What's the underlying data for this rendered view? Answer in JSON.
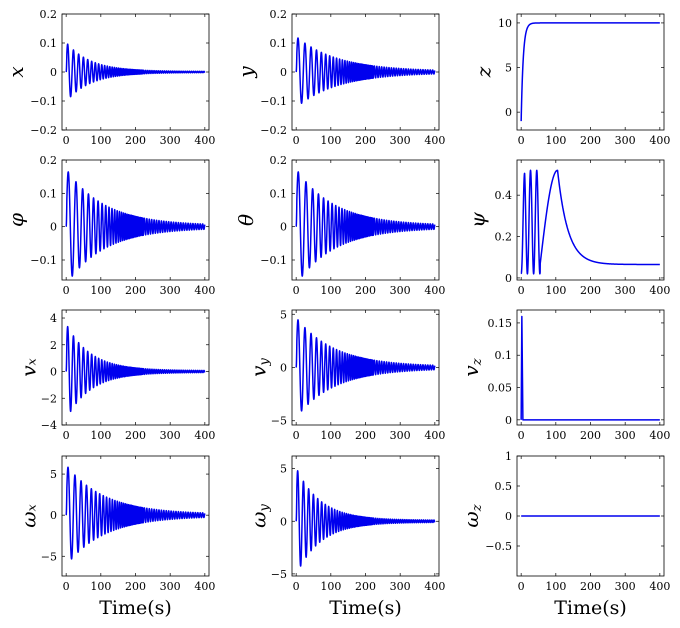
{
  "figure": {
    "line_color": "#0000ee",
    "xlabel": "Time(s)"
  },
  "chart_data": [
    {
      "id": "x",
      "type": "line",
      "ylabel": "x",
      "xlabel": "",
      "xlim": [
        -12,
        412
      ],
      "ylim": [
        -0.2,
        0.2
      ],
      "xticks": [
        0,
        100,
        200,
        300,
        400
      ],
      "xtick_labels": [
        "0",
        "100",
        "200",
        "300",
        "400"
      ],
      "yticks": [
        -0.2,
        -0.1,
        0,
        0.1,
        0.2
      ],
      "ytick_labels": [
        "−0.2",
        "−0.1",
        "0",
        "0.1",
        "0.2"
      ],
      "series": [
        {
          "kind": "osc",
          "x_start": 0,
          "x_end": 400,
          "amp": 0.1,
          "tau": 70,
          "period_start": 18,
          "period_end": 6,
          "offset": 0,
          "settle": 0
        }
      ]
    },
    {
      "id": "y",
      "type": "line",
      "ylabel": "y",
      "xlabel": "",
      "xlim": [
        -12,
        412
      ],
      "ylim": [
        -0.2,
        0.2
      ],
      "xticks": [
        0,
        100,
        200,
        300,
        400
      ],
      "xtick_labels": [
        "0",
        "100",
        "200",
        "300",
        "400"
      ],
      "yticks": [
        -0.2,
        -0.1,
        0,
        0.1,
        0.2
      ],
      "ytick_labels": [
        "−0.2",
        "−0.1",
        "0",
        "0.1",
        "0.2"
      ],
      "series": [
        {
          "kind": "osc",
          "x_start": 0,
          "x_end": 400,
          "amp": 0.12,
          "tau": 120,
          "period_start": 22,
          "period_end": 7,
          "offset": 0,
          "settle": 0
        }
      ]
    },
    {
      "id": "z",
      "type": "line",
      "ylabel": "z",
      "xlabel": "",
      "xlim": [
        -12,
        412
      ],
      "ylim": [
        -2,
        11
      ],
      "xticks": [
        0,
        100,
        200,
        300,
        400
      ],
      "xtick_labels": [
        "0",
        "100",
        "200",
        "300",
        "400"
      ],
      "yticks": [
        0,
        5,
        10
      ],
      "ytick_labels": [
        "0",
        "5",
        "10"
      ],
      "series": [
        {
          "kind": "step",
          "x_start": 0,
          "x_end": 400,
          "y_start": -1,
          "y_final": 10,
          "tau": 6
        }
      ]
    },
    {
      "id": "phi",
      "type": "line",
      "ylabel": "φ",
      "xlabel": "",
      "xlim": [
        -12,
        412
      ],
      "ylim": [
        -0.16,
        0.2
      ],
      "xticks": [
        0,
        100,
        200,
        300,
        400
      ],
      "xtick_labels": [
        "0",
        "100",
        "200",
        "300",
        "400"
      ],
      "yticks": [
        -0.1,
        0,
        0.1,
        0.2
      ],
      "ytick_labels": [
        "−0.1",
        "0",
        "0.1",
        "0.2"
      ],
      "series": [
        {
          "kind": "osc",
          "x_start": 0,
          "x_end": 400,
          "amp": 0.17,
          "tau": 110,
          "period_start": 25,
          "period_end": 7,
          "offset": 0,
          "settle": 0
        }
      ]
    },
    {
      "id": "theta",
      "type": "line",
      "ylabel": "θ",
      "xlabel": "",
      "xlim": [
        -12,
        412
      ],
      "ylim": [
        -0.16,
        0.2
      ],
      "xticks": [
        0,
        100,
        200,
        300,
        400
      ],
      "xtick_labels": [
        "0",
        "100",
        "200",
        "300",
        "400"
      ],
      "yticks": [
        -0.1,
        0,
        0.1,
        0.2
      ],
      "ytick_labels": [
        "−0.1",
        "0",
        "0.1",
        "0.2"
      ],
      "series": [
        {
          "kind": "osc",
          "x_start": 0,
          "x_end": 400,
          "amp": 0.17,
          "tau": 110,
          "period_start": 25,
          "period_end": 7,
          "offset": 0,
          "settle": 0
        }
      ]
    },
    {
      "id": "psi",
      "type": "line",
      "ylabel": "ψ",
      "xlabel": "",
      "xlim": [
        -12,
        412
      ],
      "ylim": [
        -0.01,
        0.57
      ],
      "xticks": [
        0,
        100,
        200,
        300,
        400
      ],
      "xtick_labels": [
        "0",
        "100",
        "200",
        "300",
        "400"
      ],
      "yticks": [
        0,
        0.2,
        0.4
      ],
      "ytick_labels": [
        "0",
        "0.2",
        "0.4"
      ],
      "series": [
        {
          "kind": "psi",
          "x_start": 0,
          "x_end": 400
        }
      ]
    },
    {
      "id": "vx",
      "type": "line",
      "ylabel": "vₓ",
      "xlabel": "",
      "xlim": [
        -12,
        412
      ],
      "ylim": [
        -4,
        4.6
      ],
      "xticks": [
        0,
        100,
        200,
        300,
        400
      ],
      "xtick_labels": [
        "0",
        "100",
        "200",
        "300",
        "400"
      ],
      "yticks": [
        -4,
        -2,
        0,
        2,
        4
      ],
      "ytick_labels": [
        "−4",
        "−2",
        "0",
        "2",
        "4"
      ],
      "series": [
        {
          "kind": "osc",
          "x_start": 0,
          "x_end": 400,
          "amp": 3.5,
          "tau": 70,
          "period_start": 18,
          "period_end": 6,
          "offset": 0,
          "settle": 0
        }
      ]
    },
    {
      "id": "vy",
      "type": "line",
      "ylabel": "v_y",
      "xlabel": "",
      "xlim": [
        -12,
        412
      ],
      "ylim": [
        -5.4,
        5.4
      ],
      "xticks": [
        0,
        100,
        200,
        300,
        400
      ],
      "xtick_labels": [
        "0",
        "100",
        "200",
        "300",
        "400"
      ],
      "yticks": [
        -5,
        0,
        5
      ],
      "ytick_labels": [
        "−5",
        "0",
        "5"
      ],
      "series": [
        {
          "kind": "osc",
          "x_start": 0,
          "x_end": 400,
          "amp": 4.6,
          "tau": 110,
          "period_start": 22,
          "period_end": 7,
          "offset": 0,
          "settle": 0
        }
      ]
    },
    {
      "id": "vz",
      "type": "line",
      "ylabel": "v_z",
      "xlabel": "",
      "xlim": [
        -12,
        412
      ],
      "ylim": [
        -0.008,
        0.17
      ],
      "xticks": [
        0,
        100,
        200,
        300,
        400
      ],
      "xtick_labels": [
        "0",
        "100",
        "200",
        "300",
        "400"
      ],
      "yticks": [
        0,
        0.05,
        0.1,
        0.15
      ],
      "ytick_labels": [
        "0",
        "0.05",
        "0.1",
        "0.15"
      ],
      "series": [
        {
          "kind": "pulse",
          "x_start": 0,
          "x_end": 400,
          "peak": 0.16,
          "peak_x": 2,
          "fall_end": 5
        }
      ]
    },
    {
      "id": "wx",
      "type": "line",
      "ylabel": "ωₓ",
      "xlabel": "Time(s)",
      "xlim": [
        -12,
        412
      ],
      "ylim": [
        -7.4,
        7.2
      ],
      "xticks": [
        0,
        100,
        200,
        300,
        400
      ],
      "xtick_labels": [
        "0",
        "100",
        "200",
        "300",
        "400"
      ],
      "yticks": [
        -5,
        0,
        5
      ],
      "ytick_labels": [
        "−5",
        "0",
        "5"
      ],
      "series": [
        {
          "kind": "osc",
          "x_start": 0,
          "x_end": 400,
          "amp": 6.0,
          "tau": 110,
          "period_start": 22,
          "period_end": 7,
          "offset": 0,
          "settle": 0
        }
      ]
    },
    {
      "id": "wy",
      "type": "line",
      "ylabel": "ω_y",
      "xlabel": "Time(s)",
      "xlim": [
        -12,
        412
      ],
      "ylim": [
        -5.2,
        6.2
      ],
      "xticks": [
        0,
        100,
        200,
        300,
        400
      ],
      "xtick_labels": [
        "0",
        "100",
        "200",
        "300",
        "400"
      ],
      "yticks": [
        -5,
        0,
        5
      ],
      "ytick_labels": [
        "−5",
        "0",
        "5"
      ],
      "series": [
        {
          "kind": "osc",
          "x_start": 0,
          "x_end": 400,
          "amp": 5.0,
          "tau": 70,
          "period_start": 18,
          "period_end": 6,
          "offset": 0,
          "settle": 0
        }
      ]
    },
    {
      "id": "wz",
      "type": "line",
      "ylabel": "ω_z",
      "xlabel": "Time(s)",
      "xlim": [
        -12,
        412
      ],
      "ylim": [
        -1,
        1
      ],
      "xticks": [
        0,
        100,
        200,
        300,
        400
      ],
      "xtick_labels": [
        "0",
        "100",
        "200",
        "300",
        "400"
      ],
      "yticks": [
        -0.5,
        0,
        0.5,
        1
      ],
      "ytick_labels": [
        "−0.5",
        "0",
        "0.5",
        "1"
      ],
      "series": [
        {
          "kind": "const",
          "x_start": 0,
          "x_end": 400,
          "value": 0
        }
      ]
    }
  ]
}
